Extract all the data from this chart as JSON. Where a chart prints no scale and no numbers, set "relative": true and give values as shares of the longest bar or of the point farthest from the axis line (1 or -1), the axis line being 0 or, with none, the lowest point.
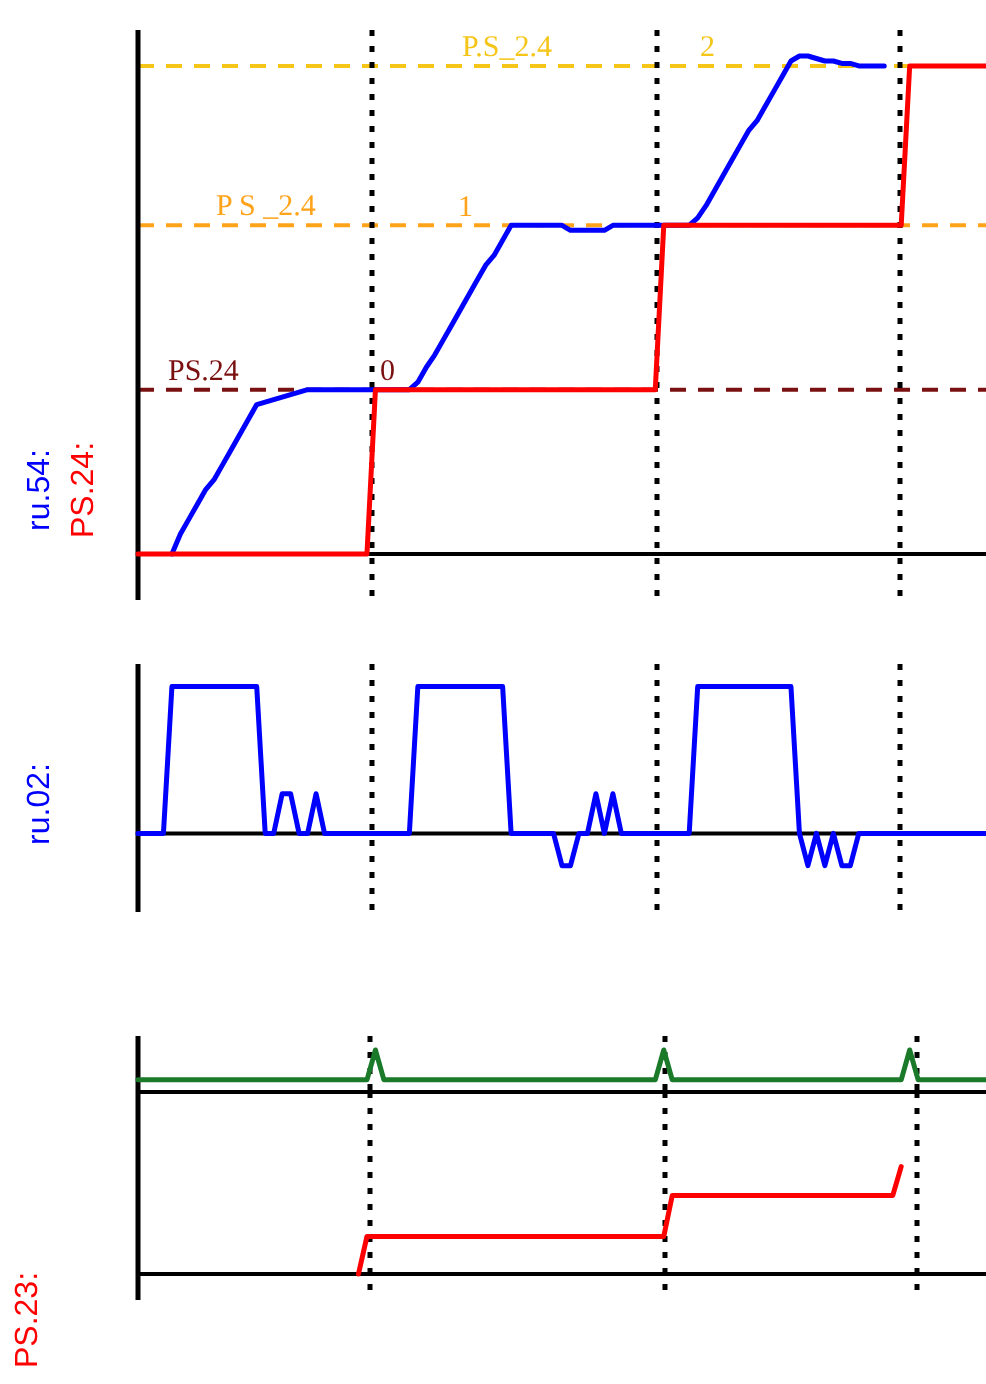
{
  "chart_data": [
    {
      "type": "line",
      "relative": true,
      "marker": "none",
      "categories": [
        null,
        null,
        null,
        null,
        null,
        null,
        null,
        null,
        null,
        null,
        null,
        null,
        null,
        null,
        null,
        null,
        null,
        null,
        null,
        null,
        null,
        null,
        null,
        null,
        null,
        null,
        null,
        null,
        null,
        null,
        null,
        null,
        null,
        null,
        null,
        null,
        null,
        null,
        null,
        null,
        null,
        null,
        null,
        null,
        null,
        null,
        null,
        null,
        null,
        null,
        null,
        null,
        null,
        null,
        null,
        null,
        null,
        null,
        null,
        null,
        null,
        null,
        null,
        null,
        null,
        null,
        null,
        null,
        null,
        null,
        null,
        null,
        null,
        null,
        null,
        null,
        null,
        null,
        null,
        null,
        null,
        null,
        null,
        null,
        null,
        null,
        null,
        null,
        null,
        null,
        null,
        null,
        null,
        null,
        null,
        null,
        null,
        null,
        null,
        null,
        null
      ],
      "series": [
        {
          "name": "ru.54:",
          "color": "#0000ff",
          "values": [
            null,
            null,
            null,
            null,
            0,
            0.04,
            0.07,
            0.1,
            0.13,
            0.15,
            0.18,
            0.21,
            0.24,
            0.27,
            0.3,
            0.305,
            0.31,
            0.315,
            0.32,
            0.325,
            0.33,
            0.33,
            0.33,
            0.33,
            0.33,
            0.33,
            0.33,
            0.33,
            0.33,
            0.33,
            0.33,
            0.33,
            0.33,
            0.345,
            0.375,
            0.4,
            0.43,
            0.46,
            0.49,
            0.52,
            0.55,
            0.58,
            0.6,
            0.63,
            0.66,
            0.66,
            0.66,
            0.66,
            0.66,
            0.66,
            0.66,
            0.65,
            0.65,
            0.65,
            0.65,
            0.65,
            0.66,
            0.66,
            0.66,
            0.66,
            0.66,
            0.66,
            0.66,
            0.66,
            0.66,
            0.66,
            0.675,
            0.7,
            0.73,
            0.76,
            0.79,
            0.82,
            0.85,
            0.87,
            0.9,
            0.93,
            0.96,
            0.99,
            1,
            1,
            0.995,
            0.99,
            0.99,
            0.985,
            0.985,
            0.98,
            0.98,
            0.98,
            0.98,
            null,
            null,
            null,
            null,
            null,
            null,
            null,
            null,
            null,
            null,
            null,
            null
          ]
        },
        {
          "name": "PS.24:",
          "color": "#ff0000",
          "values": [
            0,
            0,
            0,
            0,
            0,
            0,
            0,
            0,
            0,
            0,
            0,
            0,
            0,
            0,
            0,
            0,
            0,
            0,
            0,
            0,
            0,
            0,
            0,
            0,
            0,
            0,
            0,
            0,
            0.33,
            0.33,
            0.33,
            0.33,
            0.33,
            0.33,
            0.33,
            0.33,
            0.33,
            0.33,
            0.33,
            0.33,
            0.33,
            0.33,
            0.33,
            0.33,
            0.33,
            0.33,
            0.33,
            0.33,
            0.33,
            0.33,
            0.33,
            0.33,
            0.33,
            0.33,
            0.33,
            0.33,
            0.33,
            0.33,
            0.33,
            0.33,
            0.33,
            0.33,
            0.66,
            0.66,
            0.66,
            0.66,
            0.66,
            0.66,
            0.66,
            0.66,
            0.66,
            0.66,
            0.66,
            0.66,
            0.66,
            0.66,
            0.66,
            0.66,
            0.66,
            0.66,
            0.66,
            0.66,
            0.66,
            0.66,
            0.66,
            0.66,
            0.66,
            0.66,
            0.66,
            0.66,
            0.66,
            0.98,
            0.98,
            0.98,
            0.98,
            0.98,
            0.98,
            0.98,
            0.98,
            0.98,
            0.98
          ]
        }
      ],
      "ref_lines": [
        {
          "axis": "y",
          "value": 0.33,
          "label": "PS.24",
          "color": "#7b1010",
          "line_style": "dashed"
        },
        {
          "axis": "y",
          "value": 0.66,
          "label": "P S _2.4",
          "color": "#ffa31a",
          "line_style": "dashed"
        },
        {
          "axis": "y",
          "value": 0.98,
          "label": "P.S_2.4",
          "color": "#f5c518",
          "line_style": "dashed"
        }
      ],
      "annotations": [
        "0",
        "1",
        "2"
      ]
    },
    {
      "type": "line",
      "relative": true,
      "marker": "none",
      "categories": [
        null,
        null,
        null,
        null,
        null,
        null,
        null,
        null,
        null,
        null,
        null,
        null,
        null,
        null,
        null,
        null,
        null,
        null,
        null,
        null,
        null,
        null,
        null,
        null,
        null,
        null,
        null,
        null,
        null,
        null,
        null,
        null,
        null,
        null,
        null,
        null,
        null,
        null,
        null,
        null,
        null,
        null,
        null,
        null,
        null,
        null,
        null,
        null,
        null,
        null,
        null,
        null,
        null,
        null,
        null,
        null,
        null,
        null,
        null,
        null,
        null,
        null,
        null,
        null,
        null,
        null,
        null,
        null,
        null,
        null,
        null,
        null,
        null,
        null,
        null,
        null,
        null,
        null,
        null,
        null,
        null,
        null,
        null,
        null,
        null,
        null,
        null,
        null,
        null,
        null,
        null,
        null,
        null,
        null,
        null,
        null,
        null,
        null,
        null,
        null,
        null
      ],
      "series": [
        {
          "name": "ru.02:",
          "color": "#0000ff",
          "values": [
            0,
            0,
            0,
            0,
            1,
            1,
            1,
            1,
            1,
            1,
            1,
            1,
            1,
            1,
            1,
            0,
            0,
            0.27,
            0.27,
            0,
            0,
            0.27,
            0,
            0,
            0,
            0,
            0,
            0,
            0,
            0,
            0,
            0,
            0,
            1,
            1,
            1,
            1,
            1,
            1,
            1,
            1,
            1,
            1,
            1,
            0,
            0,
            0,
            0,
            0,
            0,
            -0.22,
            -0.22,
            0,
            0,
            0.27,
            0,
            0.27,
            0,
            0,
            0,
            0,
            0,
            0,
            0,
            0,
            0,
            1,
            1,
            1,
            1,
            1,
            1,
            1,
            1,
            1,
            1,
            1,
            1,
            0,
            -0.22,
            0,
            -0.22,
            0,
            -0.22,
            -0.22,
            0,
            0,
            0,
            0,
            0,
            0,
            0,
            0,
            0,
            0,
            0,
            0,
            0,
            0,
            0,
            0
          ]
        }
      ]
    },
    {
      "type": "line",
      "relative": true,
      "marker": "none",
      "categories": [
        null,
        null,
        null,
        null,
        null,
        null,
        null,
        null,
        null,
        null,
        null,
        null,
        null,
        null,
        null,
        null,
        null,
        null,
        null,
        null,
        null,
        null,
        null,
        null,
        null,
        null,
        null,
        null,
        null,
        null,
        null,
        null,
        null,
        null,
        null,
        null,
        null,
        null,
        null,
        null,
        null,
        null,
        null,
        null,
        null,
        null,
        null,
        null,
        null,
        null,
        null,
        null,
        null,
        null,
        null,
        null,
        null,
        null,
        null,
        null,
        null,
        null,
        null,
        null,
        null,
        null,
        null,
        null,
        null,
        null,
        null,
        null,
        null,
        null,
        null,
        null,
        null,
        null,
        null,
        null,
        null,
        null,
        null,
        null,
        null,
        null,
        null,
        null,
        null,
        null,
        null,
        null,
        null,
        null,
        null,
        null,
        null,
        null,
        null,
        null,
        null
      ],
      "series": [
        {
          "color": "#1a7a2a",
          "values": [
            0.29,
            0.29,
            0.29,
            0.29,
            0.29,
            0.29,
            0.29,
            0.29,
            0.29,
            0.29,
            0.29,
            0.29,
            0.29,
            0.29,
            0.29,
            0.29,
            0.29,
            0.29,
            0.29,
            0.29,
            0.29,
            0.29,
            0.29,
            0.29,
            0.29,
            0.29,
            0.29,
            0.29,
            1,
            0.29,
            0.29,
            0.29,
            0.29,
            0.29,
            0.29,
            0.29,
            0.29,
            0.29,
            0.29,
            0.29,
            0.29,
            0.29,
            0.29,
            0.29,
            0.29,
            0.29,
            0.29,
            0.29,
            0.29,
            0.29,
            0.29,
            0.29,
            0.29,
            0.29,
            0.29,
            0.29,
            0.29,
            0.29,
            0.29,
            0.29,
            0.29,
            0.29,
            1,
            0.29,
            0.29,
            0.29,
            0.29,
            0.29,
            0.29,
            0.29,
            0.29,
            0.29,
            0.29,
            0.29,
            0.29,
            0.29,
            0.29,
            0.29,
            0.29,
            0.29,
            0.29,
            0.29,
            0.29,
            0.29,
            0.29,
            0.29,
            0.29,
            0.29,
            0.29,
            0.29,
            0.29,
            1,
            0.29,
            0.29,
            0.29,
            0.29,
            0.29,
            0.29,
            0.29,
            0.29,
            0.29
          ]
        }
      ]
    },
    {
      "type": "line",
      "relative": true,
      "marker": "none",
      "categories": [
        null,
        null,
        null,
        null,
        null,
        null,
        null,
        null,
        null,
        null,
        null,
        null,
        null,
        null,
        null,
        null,
        null,
        null,
        null,
        null,
        null,
        null,
        null,
        null,
        null,
        null,
        null,
        null,
        null,
        null,
        null,
        null,
        null,
        null,
        null,
        null,
        null,
        null,
        null,
        null,
        null,
        null,
        null,
        null,
        null,
        null,
        null,
        null,
        null,
        null,
        null,
        null,
        null,
        null,
        null,
        null,
        null,
        null,
        null,
        null,
        null,
        null,
        null,
        null,
        null,
        null,
        null,
        null,
        null,
        null,
        null,
        null,
        null,
        null,
        null,
        null,
        null,
        null,
        null,
        null,
        null,
        null,
        null,
        null,
        null,
        null,
        null,
        null,
        null,
        null,
        null,
        null,
        null,
        null,
        null,
        null,
        null,
        null,
        null,
        null,
        null
      ],
      "series": [
        {
          "name": "PS.23:",
          "color": "#ff0000",
          "values": [
            null,
            null,
            null,
            null,
            null,
            null,
            null,
            null,
            null,
            null,
            null,
            null,
            null,
            null,
            null,
            null,
            null,
            null,
            null,
            null,
            null,
            null,
            null,
            null,
            null,
            null,
            0,
            0.35,
            0.35,
            0.35,
            0.35,
            0.35,
            0.35,
            0.35,
            0.35,
            0.35,
            0.35,
            0.35,
            0.35,
            0.35,
            0.35,
            0.35,
            0.35,
            0.35,
            0.35,
            0.35,
            0.35,
            0.35,
            0.35,
            0.35,
            0.35,
            0.35,
            0.35,
            0.35,
            0.35,
            0.35,
            0.35,
            0.35,
            0.35,
            0.35,
            0.35,
            0.35,
            0.35,
            0.73,
            0.73,
            0.73,
            0.73,
            0.73,
            0.73,
            0.73,
            0.73,
            0.73,
            0.73,
            0.73,
            0.73,
            0.73,
            0.73,
            0.73,
            0.73,
            0.73,
            0.73,
            0.73,
            0.73,
            0.73,
            0.73,
            0.73,
            0.73,
            0.73,
            0.73,
            0.73,
            1,
            null,
            null,
            null,
            null,
            null,
            null,
            null,
            null,
            null,
            null
          ]
        }
      ]
    }
  ]
}
